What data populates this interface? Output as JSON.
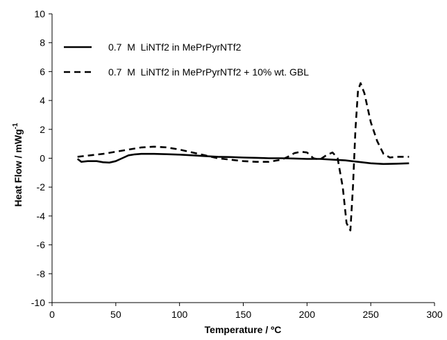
{
  "chart_data": {
    "type": "line",
    "title": "",
    "xlabel": "Temperature / ºC",
    "ylabel": "Heat Flow / mWg",
    "ylabel_superscript": "-1",
    "xlim": [
      0,
      300
    ],
    "ylim": [
      -10,
      10
    ],
    "xticks": [
      0,
      50,
      100,
      150,
      200,
      250,
      300
    ],
    "yticks": [
      -10,
      -8,
      -6,
      -4,
      -2,
      0,
      2,
      4,
      6,
      8,
      10
    ],
    "grid": false,
    "legend_position": "top-left",
    "series": [
      {
        "name": "0.7  M  LiNTf2 in MePrPyrNTf2",
        "line_style": "solid",
        "color": "#000000",
        "x": [
          20,
          23,
          28,
          35,
          40,
          45,
          50,
          55,
          60,
          65,
          70,
          80,
          90,
          100,
          110,
          120,
          130,
          140,
          150,
          160,
          170,
          180,
          190,
          200,
          210,
          220,
          230,
          240,
          250,
          260,
          270,
          280
        ],
        "y": [
          -0.05,
          -0.25,
          -0.2,
          -0.2,
          -0.28,
          -0.3,
          -0.2,
          0.0,
          0.2,
          0.27,
          0.3,
          0.3,
          0.28,
          0.25,
          0.2,
          0.15,
          0.1,
          0.08,
          0.05,
          0.03,
          0.0,
          0.0,
          -0.02,
          -0.05,
          -0.05,
          -0.1,
          -0.15,
          -0.25,
          -0.35,
          -0.4,
          -0.38,
          -0.35
        ]
      },
      {
        "name": "0.7  M  LiNTf2 in MePrPyrNTf2 + 10% wt. GBL",
        "line_style": "dashed",
        "color": "#000000",
        "x": [
          20,
          30,
          40,
          50,
          60,
          70,
          80,
          90,
          100,
          110,
          120,
          130,
          140,
          150,
          160,
          170,
          180,
          185,
          190,
          195,
          200,
          205,
          210,
          215,
          220,
          224,
          228,
          231,
          234,
          236,
          238,
          240,
          242,
          245,
          250,
          255,
          260,
          265,
          270,
          280
        ],
        "y": [
          0.1,
          0.2,
          0.3,
          0.45,
          0.6,
          0.75,
          0.8,
          0.75,
          0.6,
          0.4,
          0.2,
          0.0,
          -0.1,
          -0.2,
          -0.25,
          -0.25,
          -0.1,
          0.1,
          0.35,
          0.45,
          0.4,
          0.0,
          -0.1,
          0.2,
          0.4,
          0.0,
          -2.0,
          -4.5,
          -5.0,
          -2.0,
          2.0,
          4.7,
          5.2,
          4.5,
          2.5,
          1.2,
          0.3,
          0.05,
          0.1,
          0.1
        ]
      }
    ]
  }
}
